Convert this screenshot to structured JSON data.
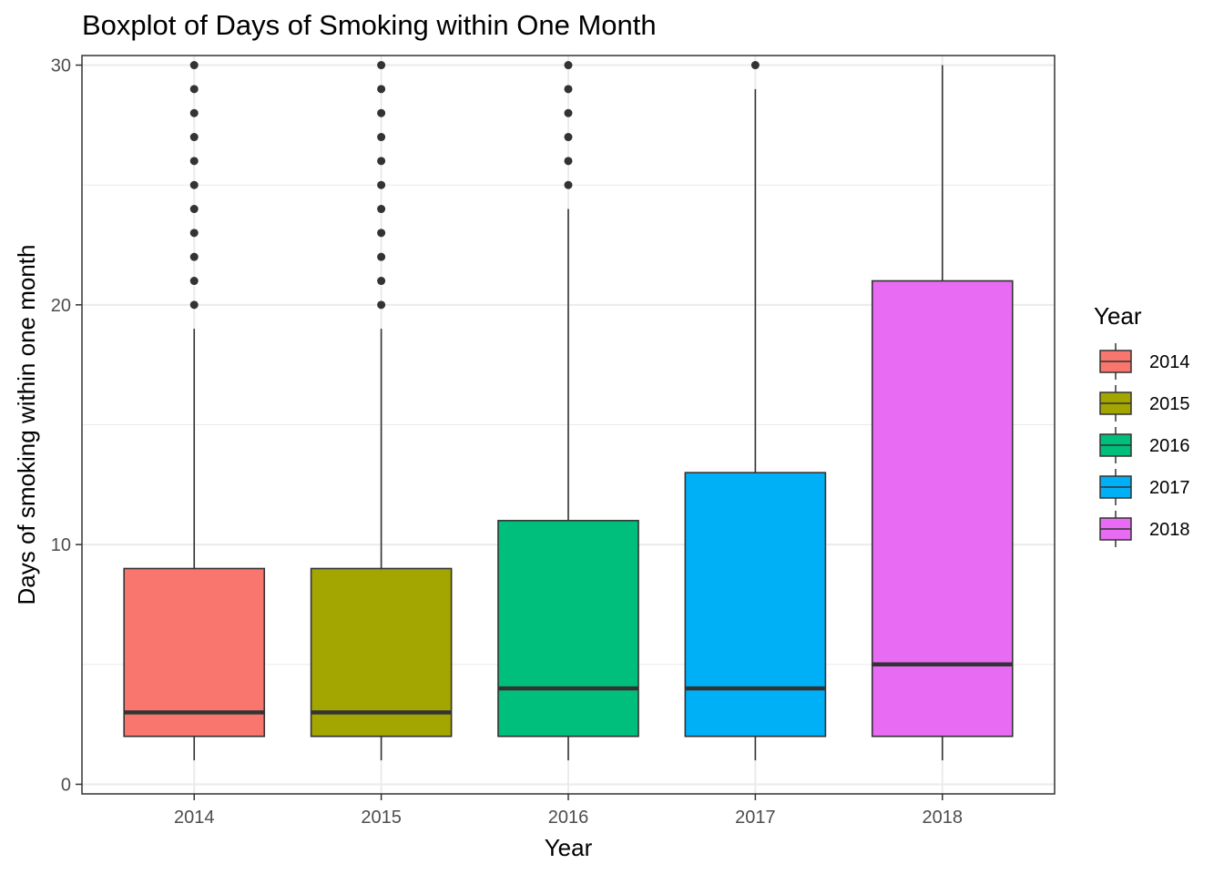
{
  "chart_data": {
    "type": "boxplot",
    "title": "Boxplot of Days of Smoking within One Month",
    "xlabel": "Year",
    "ylabel": "Days of smoking within one month",
    "ylim": [
      -0.4,
      30.4
    ],
    "y_ticks": [
      0,
      10,
      20,
      30
    ],
    "grid": true,
    "legend": {
      "title": "Year",
      "placement": "right",
      "entries": [
        "2014",
        "2015",
        "2016",
        "2017",
        "2018"
      ]
    },
    "categories": [
      "2014",
      "2015",
      "2016",
      "2017",
      "2018"
    ],
    "boxes": [
      {
        "category": "2014",
        "color": "#F8766D",
        "whisker_low": 1,
        "q1": 2,
        "median": 3,
        "q3": 9,
        "whisker_high": 19,
        "outliers": [
          20,
          21,
          22,
          23,
          24,
          25,
          26,
          27,
          28,
          29,
          30
        ]
      },
      {
        "category": "2015",
        "color": "#A3A500",
        "whisker_low": 1,
        "q1": 2,
        "median": 3,
        "q3": 9,
        "whisker_high": 19,
        "outliers": [
          20,
          21,
          22,
          23,
          24,
          25,
          26,
          27,
          28,
          29,
          30
        ]
      },
      {
        "category": "2016",
        "color": "#00BF7D",
        "whisker_low": 1,
        "q1": 2,
        "median": 4,
        "q3": 11,
        "whisker_high": 24,
        "outliers": [
          25,
          26,
          27,
          28,
          29,
          30
        ]
      },
      {
        "category": "2017",
        "color": "#00B0F6",
        "whisker_low": 1,
        "q1": 2,
        "median": 4,
        "q3": 13,
        "whisker_high": 29,
        "outliers": [
          30
        ]
      },
      {
        "category": "2018",
        "color": "#E76BF3",
        "whisker_low": 1,
        "q1": 2,
        "median": 5,
        "q3": 21,
        "whisker_high": 30,
        "outliers": []
      }
    ]
  }
}
